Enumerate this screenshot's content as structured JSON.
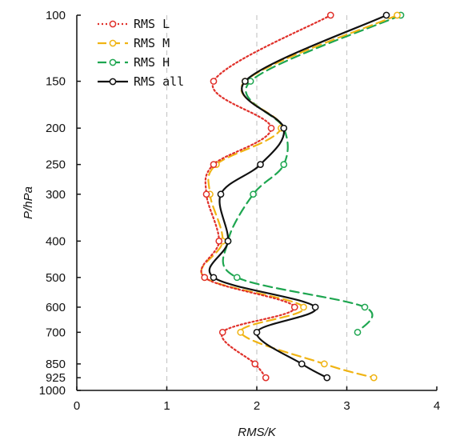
{
  "chart_data": {
    "type": "line",
    "xlabel": "RMS/K",
    "ylabel": "P/hPa",
    "xlim": [
      0,
      4
    ],
    "ylim": [
      100,
      1000
    ],
    "y_scale": "log",
    "y_inverted": true,
    "x_ticks": [
      0,
      1,
      2,
      3,
      4
    ],
    "y_ticks": [
      100,
      150,
      200,
      250,
      300,
      400,
      500,
      600,
      700,
      850,
      925,
      1000
    ],
    "grid": "vertical dashed at x = 1, 2, 3",
    "legend_position": "top-left",
    "levels": [
      100,
      150,
      200,
      250,
      300,
      400,
      500,
      600,
      700,
      850,
      925
    ],
    "series": [
      {
        "name": "RMS L",
        "color": "#e0302a",
        "style": "dotted",
        "values": [
          2.82,
          1.52,
          2.16,
          1.52,
          1.44,
          1.58,
          1.42,
          2.42,
          1.62,
          1.98,
          2.1
        ]
      },
      {
        "name": "RMS M",
        "color": "#f0b414",
        "style": "dashed",
        "values": [
          3.56,
          1.87,
          2.27,
          1.55,
          1.48,
          1.62,
          1.42,
          2.52,
          1.82,
          2.75,
          3.3
        ]
      },
      {
        "name": "RMS H",
        "color": "#1ea650",
        "style": "dashed",
        "values": [
          3.6,
          1.93,
          2.3,
          2.3,
          1.96,
          1.68,
          1.78,
          3.2,
          3.12,
          null,
          null
        ]
      },
      {
        "name": "RMS all",
        "color": "#111111",
        "style": "solid",
        "values": [
          3.44,
          1.87,
          2.3,
          2.04,
          1.6,
          1.68,
          1.52,
          2.65,
          2.0,
          2.5,
          2.78
        ]
      }
    ]
  }
}
